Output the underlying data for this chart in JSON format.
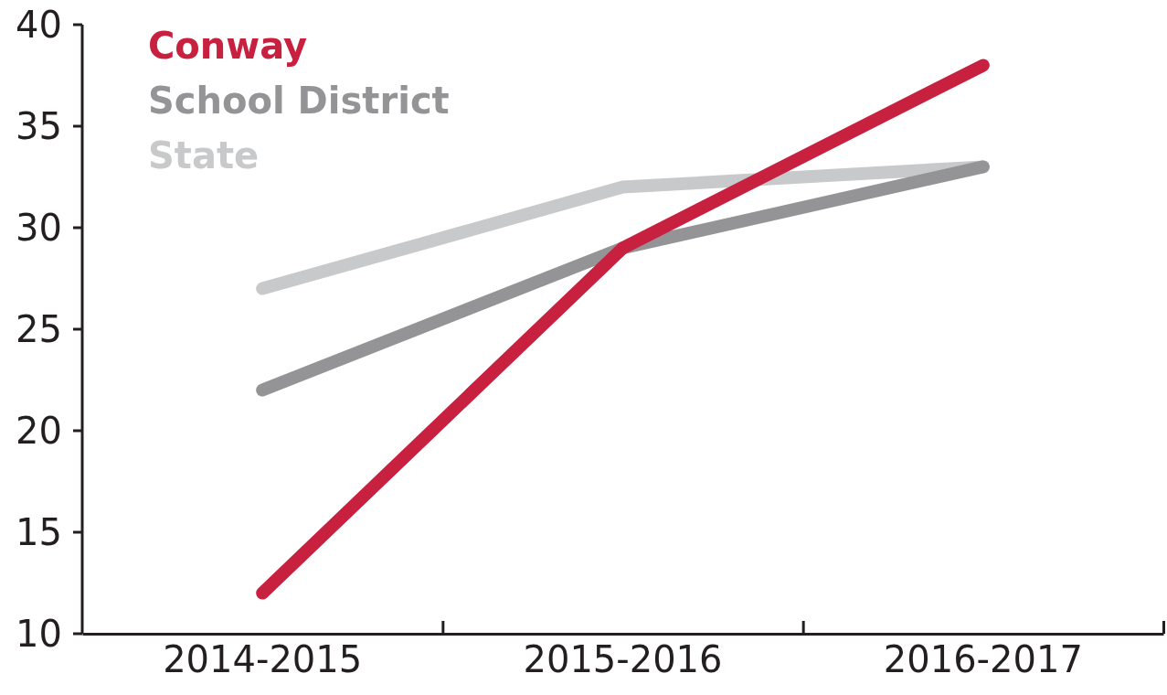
{
  "chart_data": {
    "type": "line",
    "categories": [
      "2014-2015",
      "2015-2016",
      "2016-2017"
    ],
    "series": [
      {
        "name": "Conway",
        "color": "#c8203f",
        "values": [
          12,
          29,
          38
        ]
      },
      {
        "name": "School District",
        "color": "#949497",
        "values": [
          22,
          29,
          33
        ]
      },
      {
        "name": "State",
        "color": "#c8c9cb",
        "values": [
          27,
          32,
          33
        ]
      }
    ],
    "ylim": [
      10,
      40
    ],
    "yticks": [
      10,
      15,
      20,
      25,
      30,
      35,
      40
    ],
    "grid": false,
    "legend": "top left",
    "marker": "none",
    "line_style": "solid"
  }
}
